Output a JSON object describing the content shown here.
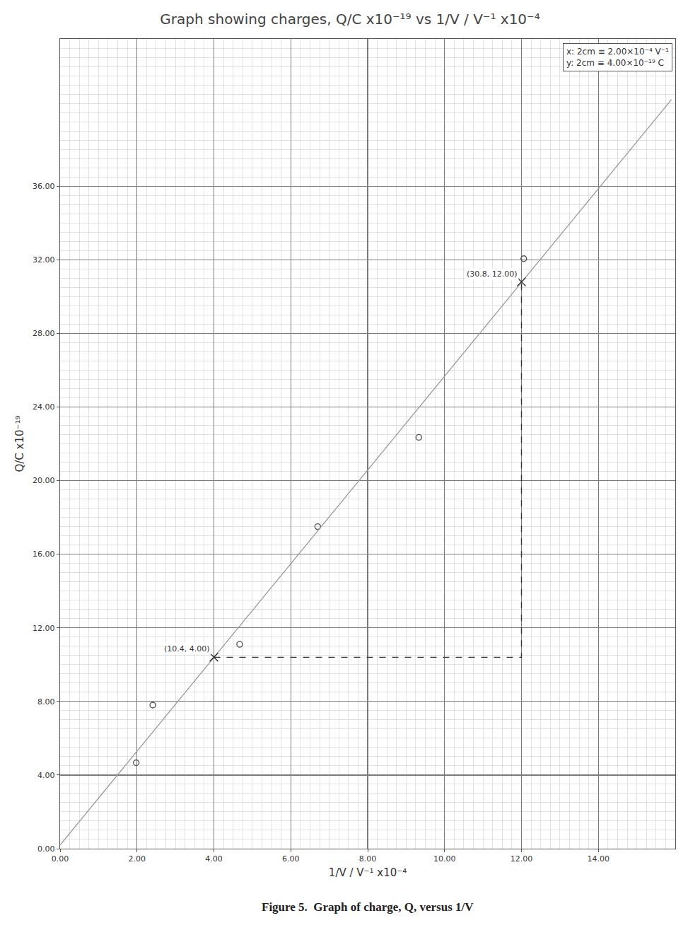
{
  "chart_data": {
    "type": "scatter",
    "title": "Graph showing charges, Q/C x10⁻¹⁹ vs 1/V / V⁻¹ x10⁻⁴",
    "caption": "Figure 5.  Graph of charge, Q, versus 1/V",
    "xlabel": "1/V / V⁻¹ x10⁻⁴",
    "ylabel": "Q/C x10⁻¹⁹",
    "scale_key": [
      "x: 2cm ≡ 2.00×10⁻⁴ V⁻¹",
      "y: 2cm ≡ 4.00×10⁻¹⁹ C"
    ],
    "xlim": [
      0,
      16
    ],
    "ylim": [
      0,
      44
    ],
    "xticks": [
      {
        "value": 0,
        "label": "0.00"
      },
      {
        "value": 2,
        "label": "2.00"
      },
      {
        "value": 4,
        "label": "4.00"
      },
      {
        "value": 6,
        "label": "6.00"
      },
      {
        "value": 8,
        "label": "8.00"
      },
      {
        "value": 10,
        "label": "10.00"
      },
      {
        "value": 12,
        "label": "12.00"
      },
      {
        "value": 14,
        "label": "14.00"
      }
    ],
    "yticks": [
      {
        "value": 0,
        "label": "0.00"
      },
      {
        "value": 4,
        "label": "4.00"
      },
      {
        "value": 8,
        "label": "8.00"
      },
      {
        "value": 12,
        "label": "12.00"
      },
      {
        "value": 16,
        "label": "16.00"
      },
      {
        "value": 20,
        "label": "20.00"
      },
      {
        "value": 24,
        "label": "24.00"
      },
      {
        "value": 28,
        "label": "28.00"
      },
      {
        "value": 32,
        "label": "32.00"
      },
      {
        "value": 36,
        "label": "36.00"
      }
    ],
    "grid": true,
    "series": [
      {
        "type": "scatter",
        "marker": "circle-open",
        "color": "#555555",
        "x": [
          1.98,
          2.41,
          4.67,
          6.7,
          9.33,
          12.06
        ],
        "values": [
          4.67,
          7.8,
          11.1,
          17.5,
          22.35,
          32.06
        ]
      },
      {
        "type": "line",
        "line_style": "solid",
        "color": "#9a9a9a",
        "x": [
          0,
          15.9
        ],
        "values": [
          0.2,
          40.7
        ]
      },
      {
        "type": "line",
        "line_style": "dash",
        "color": "#333333",
        "x": [
          4,
          12,
          12
        ],
        "values": [
          10.4,
          10.4,
          30.8
        ]
      },
      {
        "type": "scatter",
        "marker": "x",
        "color": "#333333",
        "x": [
          4,
          12
        ],
        "values": [
          10.4,
          30.8
        ]
      }
    ],
    "annotations": [
      {
        "x": 4,
        "y": 10.4,
        "text": "(10.4, 4.00)"
      },
      {
        "x": 12,
        "y": 30.8,
        "text": "(30.8, 12.00)"
      }
    ]
  }
}
